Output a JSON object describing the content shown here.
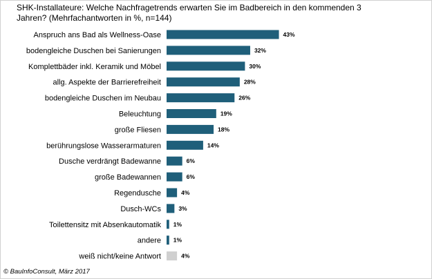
{
  "chart_data": {
    "type": "bar",
    "orientation": "horizontal",
    "title_line1": "SHK-Installateure: Welche Nachfragetrends  erwarten Sie im Badbereich in den kommenden 3",
    "title_line2": "Jahren? (Mehrfachantworten in %, n=144)",
    "xlabel": "",
    "ylabel": "",
    "xlim": [
      0,
      100
    ],
    "grid": false,
    "colors": {
      "bar": "#1f5f7a",
      "bar_neutral": "#d0d0d0"
    },
    "categories": [
      "Anspruch ans Bad als Wellness-Oase",
      "bodengleiche Duschen bei Sanierungen",
      "Komplettbäder inkl. Keramik und Möbel",
      "allg. Aspekte der Barrierefreiheit",
      "bodengleiche Duschen im Neubau",
      "Beleuchtung",
      "große Fliesen",
      "berührungslose Wasserarmaturen",
      "Dusche verdrängt Badewanne",
      "große Badewannen",
      "Regendusche",
      "Dusch-WCs",
      "Toilettensitz mit Absenkautomatik",
      "andere",
      "weiß nicht/keine Antwort"
    ],
    "values": [
      43,
      32,
      30,
      28,
      26,
      19,
      18,
      14,
      6,
      6,
      4,
      3,
      1,
      1,
      4
    ],
    "value_labels": [
      "43%",
      "32%",
      "30%",
      "28%",
      "26%",
      "19%",
      "18%",
      "14%",
      "6%",
      "6%",
      "4%",
      "3%",
      "1%",
      "1%",
      "4%"
    ],
    "neutral": [
      false,
      false,
      false,
      false,
      false,
      false,
      false,
      false,
      false,
      false,
      false,
      false,
      false,
      false,
      true
    ]
  },
  "footer": {
    "source": "© BauInfoConsult, März 2017"
  }
}
